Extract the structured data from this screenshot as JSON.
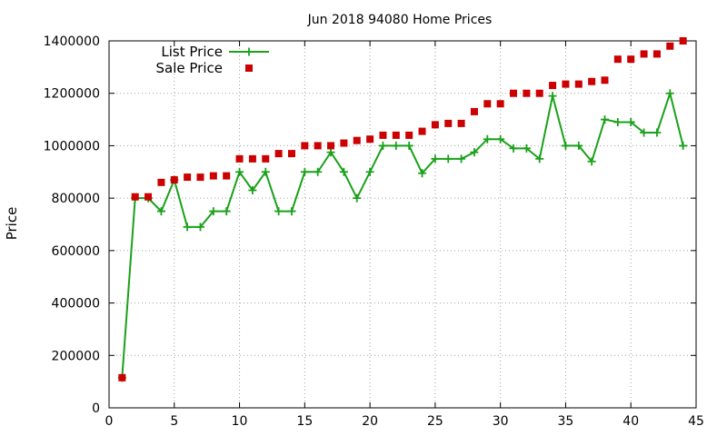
{
  "chart_data": {
    "type": "line",
    "title": "Jun 2018 94080 Home Prices",
    "xlabel": "",
    "ylabel": "Price",
    "xlim": [
      0,
      45
    ],
    "ylim": [
      0,
      1400000
    ],
    "xticks": [
      0,
      5,
      10,
      15,
      20,
      25,
      30,
      35,
      40,
      45
    ],
    "yticks": [
      0,
      200000,
      400000,
      600000,
      800000,
      1000000,
      1200000,
      1400000
    ],
    "grid": true,
    "legend_position": "top-left",
    "x": [
      1,
      2,
      3,
      4,
      5,
      6,
      7,
      8,
      9,
      10,
      11,
      12,
      13,
      14,
      15,
      16,
      17,
      18,
      19,
      20,
      21,
      22,
      23,
      24,
      25,
      26,
      27,
      28,
      29,
      30,
      31,
      32,
      33,
      34,
      35,
      36,
      37,
      38,
      39,
      40,
      41,
      42,
      43,
      44
    ],
    "series": [
      {
        "name": "List Price",
        "style": "line-plus",
        "color": "#1aa11a",
        "values": [
          115000,
          800000,
          800000,
          750000,
          870000,
          690000,
          690000,
          750000,
          750000,
          900000,
          830000,
          900000,
          750000,
          750000,
          900000,
          900000,
          975000,
          900000,
          800000,
          900000,
          1000000,
          1000000,
          1000000,
          895000,
          950000,
          950000,
          950000,
          975000,
          1025000,
          1025000,
          990000,
          990000,
          950000,
          1190000,
          1000000,
          1000000,
          940000,
          1100000,
          1090000,
          1090000,
          1050000,
          1050000,
          1200000,
          1000000
        ]
      },
      {
        "name": "Sale Price",
        "style": "square",
        "color": "#cc0000",
        "values": [
          115000,
          805000,
          805000,
          860000,
          870000,
          880000,
          880000,
          885000,
          885000,
          950000,
          950000,
          950000,
          970000,
          970000,
          1000000,
          1000000,
          1000000,
          1010000,
          1020000,
          1025000,
          1040000,
          1040000,
          1040000,
          1055000,
          1080000,
          1085000,
          1085000,
          1130000,
          1160000,
          1160000,
          1200000,
          1200000,
          1200000,
          1230000,
          1235000,
          1235000,
          1245000,
          1250000,
          1330000,
          1330000,
          1350000,
          1350000,
          1380000,
          1400000
        ]
      }
    ]
  }
}
